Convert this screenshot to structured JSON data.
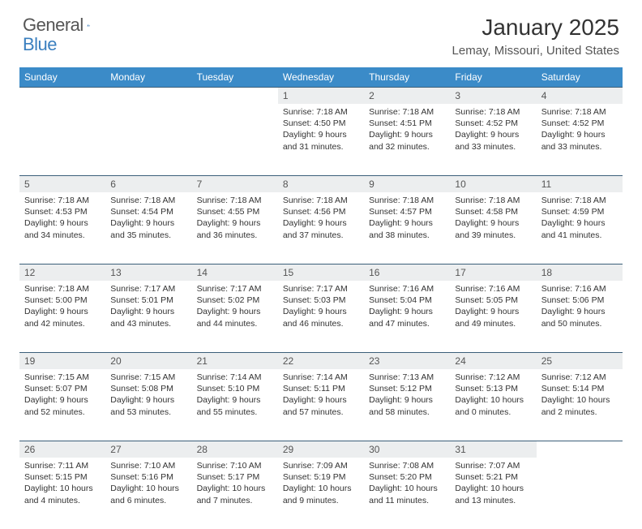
{
  "logo": {
    "text1": "General",
    "text2": "Blue"
  },
  "title": "January 2025",
  "location": "Lemay, Missouri, United States",
  "colors": {
    "header_bg": "#3b8bc8",
    "header_text": "#ffffff",
    "daynum_bg": "#eceeef",
    "row_border": "#3b5f7a",
    "logo_blue": "#3a7fbf"
  },
  "weekdays": [
    "Sunday",
    "Monday",
    "Tuesday",
    "Wednesday",
    "Thursday",
    "Friday",
    "Saturday"
  ],
  "weeks": [
    [
      {
        "n": "",
        "lines": []
      },
      {
        "n": "",
        "lines": []
      },
      {
        "n": "",
        "lines": []
      },
      {
        "n": "1",
        "lines": [
          "Sunrise: 7:18 AM",
          "Sunset: 4:50 PM",
          "Daylight: 9 hours and 31 minutes."
        ]
      },
      {
        "n": "2",
        "lines": [
          "Sunrise: 7:18 AM",
          "Sunset: 4:51 PM",
          "Daylight: 9 hours and 32 minutes."
        ]
      },
      {
        "n": "3",
        "lines": [
          "Sunrise: 7:18 AM",
          "Sunset: 4:52 PM",
          "Daylight: 9 hours and 33 minutes."
        ]
      },
      {
        "n": "4",
        "lines": [
          "Sunrise: 7:18 AM",
          "Sunset: 4:52 PM",
          "Daylight: 9 hours and 33 minutes."
        ]
      }
    ],
    [
      {
        "n": "5",
        "lines": [
          "Sunrise: 7:18 AM",
          "Sunset: 4:53 PM",
          "Daylight: 9 hours and 34 minutes."
        ]
      },
      {
        "n": "6",
        "lines": [
          "Sunrise: 7:18 AM",
          "Sunset: 4:54 PM",
          "Daylight: 9 hours and 35 minutes."
        ]
      },
      {
        "n": "7",
        "lines": [
          "Sunrise: 7:18 AM",
          "Sunset: 4:55 PM",
          "Daylight: 9 hours and 36 minutes."
        ]
      },
      {
        "n": "8",
        "lines": [
          "Sunrise: 7:18 AM",
          "Sunset: 4:56 PM",
          "Daylight: 9 hours and 37 minutes."
        ]
      },
      {
        "n": "9",
        "lines": [
          "Sunrise: 7:18 AM",
          "Sunset: 4:57 PM",
          "Daylight: 9 hours and 38 minutes."
        ]
      },
      {
        "n": "10",
        "lines": [
          "Sunrise: 7:18 AM",
          "Sunset: 4:58 PM",
          "Daylight: 9 hours and 39 minutes."
        ]
      },
      {
        "n": "11",
        "lines": [
          "Sunrise: 7:18 AM",
          "Sunset: 4:59 PM",
          "Daylight: 9 hours and 41 minutes."
        ]
      }
    ],
    [
      {
        "n": "12",
        "lines": [
          "Sunrise: 7:18 AM",
          "Sunset: 5:00 PM",
          "Daylight: 9 hours and 42 minutes."
        ]
      },
      {
        "n": "13",
        "lines": [
          "Sunrise: 7:17 AM",
          "Sunset: 5:01 PM",
          "Daylight: 9 hours and 43 minutes."
        ]
      },
      {
        "n": "14",
        "lines": [
          "Sunrise: 7:17 AM",
          "Sunset: 5:02 PM",
          "Daylight: 9 hours and 44 minutes."
        ]
      },
      {
        "n": "15",
        "lines": [
          "Sunrise: 7:17 AM",
          "Sunset: 5:03 PM",
          "Daylight: 9 hours and 46 minutes."
        ]
      },
      {
        "n": "16",
        "lines": [
          "Sunrise: 7:16 AM",
          "Sunset: 5:04 PM",
          "Daylight: 9 hours and 47 minutes."
        ]
      },
      {
        "n": "17",
        "lines": [
          "Sunrise: 7:16 AM",
          "Sunset: 5:05 PM",
          "Daylight: 9 hours and 49 minutes."
        ]
      },
      {
        "n": "18",
        "lines": [
          "Sunrise: 7:16 AM",
          "Sunset: 5:06 PM",
          "Daylight: 9 hours and 50 minutes."
        ]
      }
    ],
    [
      {
        "n": "19",
        "lines": [
          "Sunrise: 7:15 AM",
          "Sunset: 5:07 PM",
          "Daylight: 9 hours and 52 minutes."
        ]
      },
      {
        "n": "20",
        "lines": [
          "Sunrise: 7:15 AM",
          "Sunset: 5:08 PM",
          "Daylight: 9 hours and 53 minutes."
        ]
      },
      {
        "n": "21",
        "lines": [
          "Sunrise: 7:14 AM",
          "Sunset: 5:10 PM",
          "Daylight: 9 hours and 55 minutes."
        ]
      },
      {
        "n": "22",
        "lines": [
          "Sunrise: 7:14 AM",
          "Sunset: 5:11 PM",
          "Daylight: 9 hours and 57 minutes."
        ]
      },
      {
        "n": "23",
        "lines": [
          "Sunrise: 7:13 AM",
          "Sunset: 5:12 PM",
          "Daylight: 9 hours and 58 minutes."
        ]
      },
      {
        "n": "24",
        "lines": [
          "Sunrise: 7:12 AM",
          "Sunset: 5:13 PM",
          "Daylight: 10 hours and 0 minutes."
        ]
      },
      {
        "n": "25",
        "lines": [
          "Sunrise: 7:12 AM",
          "Sunset: 5:14 PM",
          "Daylight: 10 hours and 2 minutes."
        ]
      }
    ],
    [
      {
        "n": "26",
        "lines": [
          "Sunrise: 7:11 AM",
          "Sunset: 5:15 PM",
          "Daylight: 10 hours and 4 minutes."
        ]
      },
      {
        "n": "27",
        "lines": [
          "Sunrise: 7:10 AM",
          "Sunset: 5:16 PM",
          "Daylight: 10 hours and 6 minutes."
        ]
      },
      {
        "n": "28",
        "lines": [
          "Sunrise: 7:10 AM",
          "Sunset: 5:17 PM",
          "Daylight: 10 hours and 7 minutes."
        ]
      },
      {
        "n": "29",
        "lines": [
          "Sunrise: 7:09 AM",
          "Sunset: 5:19 PM",
          "Daylight: 10 hours and 9 minutes."
        ]
      },
      {
        "n": "30",
        "lines": [
          "Sunrise: 7:08 AM",
          "Sunset: 5:20 PM",
          "Daylight: 10 hours and 11 minutes."
        ]
      },
      {
        "n": "31",
        "lines": [
          "Sunrise: 7:07 AM",
          "Sunset: 5:21 PM",
          "Daylight: 10 hours and 13 minutes."
        ]
      },
      {
        "n": "",
        "lines": []
      }
    ]
  ]
}
